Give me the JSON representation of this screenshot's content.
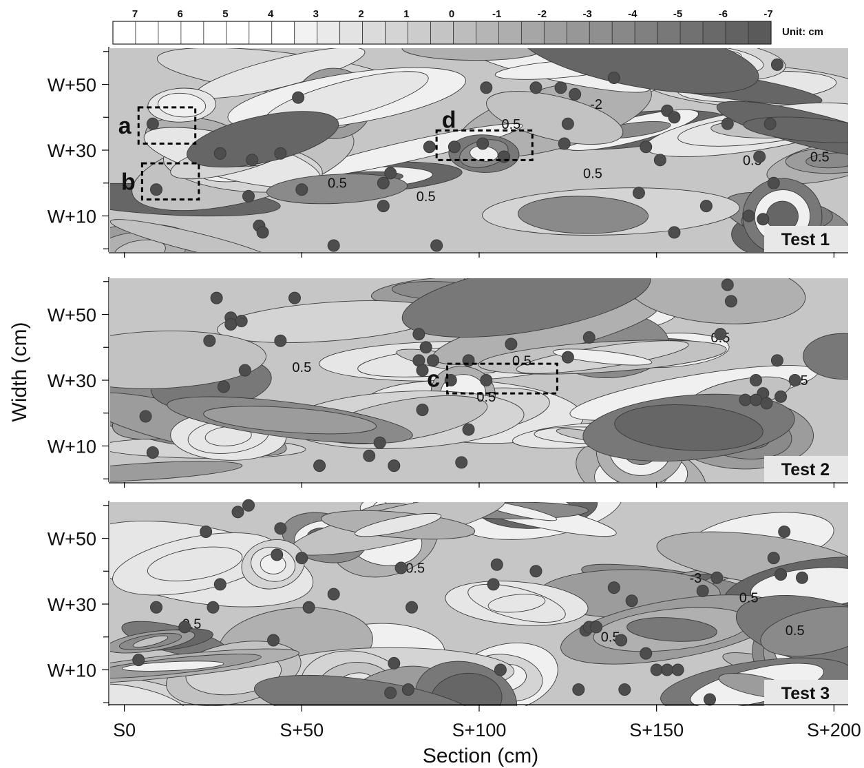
{
  "chart_data": {
    "type": "heatmap",
    "xlabel": "Section (cm)",
    "ylabel": "Width (cm)",
    "x_ticks": [
      "S0",
      "S+50",
      "S+100",
      "S+150",
      "S+200"
    ],
    "x_tick_values": [
      0,
      50,
      100,
      150,
      200
    ],
    "y_ticks": [
      "W+50",
      "W+30",
      "W+10"
    ],
    "y_tick_values": [
      50,
      30,
      10
    ],
    "xlim": [
      -4,
      204
    ],
    "ylim": [
      -1,
      61
    ],
    "colorbar": {
      "labels": [
        "7",
        "6",
        "5",
        "4",
        "3",
        "2",
        "1",
        "0",
        "-1",
        "-2",
        "-3",
        "-4",
        "-5",
        "-6",
        "-7"
      ],
      "values": [
        7,
        6,
        5,
        4,
        3,
        2,
        1,
        0,
        -1,
        -2,
        -3,
        -4,
        -5,
        -6,
        -7
      ],
      "unit": "Unit: cm",
      "color_light": "#ffffff",
      "color_dark": "#5a5a5a"
    },
    "panels": [
      {
        "name": "Test 1",
        "contour_labels": [
          {
            "text": "0.5",
            "x": 60,
            "y": 20
          },
          {
            "text": "0.5",
            "x": 85,
            "y": 16
          },
          {
            "text": "0.5",
            "x": 109,
            "y": 38
          },
          {
            "text": "-2",
            "x": 133,
            "y": 44
          },
          {
            "text": "0.5",
            "x": 132,
            "y": 23
          },
          {
            "text": "0.5",
            "x": 177,
            "y": 27
          },
          {
            "text": "0.5",
            "x": 196,
            "y": 28
          }
        ],
        "boxes": [
          {
            "label": "a",
            "x0": 4,
            "x1": 20,
            "y0": 32,
            "y1": 43
          },
          {
            "label": "b",
            "x0": 5,
            "x1": 21,
            "y0": 15,
            "y1": 26
          },
          {
            "label": "d",
            "x0": 88,
            "x1": 115,
            "y0": 27,
            "y1": 36
          }
        ],
        "points": [
          [
            8,
            38
          ],
          [
            9,
            18
          ],
          [
            49,
            46
          ],
          [
            27,
            29
          ],
          [
            36,
            27
          ],
          [
            44,
            29
          ],
          [
            35,
            16
          ],
          [
            38,
            7
          ],
          [
            39,
            5
          ],
          [
            50,
            18
          ],
          [
            73,
            20
          ],
          [
            75,
            23
          ],
          [
            73,
            13
          ],
          [
            59,
            1
          ],
          [
            88,
            1
          ],
          [
            93,
            31
          ],
          [
            86,
            31
          ],
          [
            101,
            32
          ],
          [
            107,
            28
          ],
          [
            102,
            49
          ],
          [
            116,
            49
          ],
          [
            123,
            49
          ],
          [
            127,
            47
          ],
          [
            125,
            38
          ],
          [
            124,
            32
          ],
          [
            138,
            52
          ],
          [
            153,
            42
          ],
          [
            155,
            40
          ],
          [
            170,
            38
          ],
          [
            182,
            38
          ],
          [
            184,
            56
          ],
          [
            179,
            28
          ],
          [
            147,
            31
          ],
          [
            151,
            27
          ],
          [
            145,
            17
          ],
          [
            164,
            13
          ],
          [
            155,
            5
          ],
          [
            176,
            10
          ],
          [
            180,
            9
          ],
          [
            183,
            20
          ]
        ]
      },
      {
        "name": "Test 2",
        "contour_labels": [
          {
            "text": "0.5",
            "x": 50,
            "y": 34
          },
          {
            "text": "0.5",
            "x": 112,
            "y": 36
          },
          {
            "text": "0.5",
            "x": 102,
            "y": 25
          },
          {
            "text": "0.5",
            "x": 168,
            "y": 43
          },
          {
            "text": "0.5",
            "x": 190,
            "y": 30
          }
        ],
        "boxes": [
          {
            "label": "c",
            "x0": 91,
            "x1": 122,
            "y0": 26,
            "y1": 35
          }
        ],
        "points": [
          [
            26,
            55
          ],
          [
            30,
            49
          ],
          [
            30,
            47
          ],
          [
            33,
            48
          ],
          [
            48,
            55
          ],
          [
            24,
            42
          ],
          [
            34,
            33
          ],
          [
            28,
            28
          ],
          [
            6,
            19
          ],
          [
            8,
            8
          ],
          [
            44,
            42
          ],
          [
            55,
            4
          ],
          [
            83,
            44
          ],
          [
            85,
            40
          ],
          [
            83,
            36
          ],
          [
            84,
            33
          ],
          [
            87,
            36
          ],
          [
            97,
            36
          ],
          [
            84,
            21
          ],
          [
            97,
            15
          ],
          [
            92,
            30
          ],
          [
            95,
            5
          ],
          [
            72,
            11
          ],
          [
            69,
            7
          ],
          [
            76,
            4
          ],
          [
            102,
            30
          ],
          [
            109,
            41
          ],
          [
            125,
            37
          ],
          [
            131,
            43
          ],
          [
            170,
            59
          ],
          [
            171,
            54
          ],
          [
            168,
            44
          ],
          [
            189,
            30
          ],
          [
            178,
            30
          ],
          [
            175,
            24
          ],
          [
            180,
            26
          ],
          [
            178,
            24
          ],
          [
            185,
            25
          ],
          [
            181,
            23
          ],
          [
            184,
            36
          ]
        ]
      },
      {
        "name": "Test 3",
        "contour_labels": [
          {
            "text": "0.5",
            "x": 82,
            "y": 41
          },
          {
            "text": "0.5",
            "x": 19,
            "y": 24
          },
          {
            "text": "-3",
            "x": 161,
            "y": 38
          },
          {
            "text": "0.5",
            "x": 176,
            "y": 32
          },
          {
            "text": "0.5",
            "x": 137,
            "y": 20
          },
          {
            "text": "0.5",
            "x": 189,
            "y": 22
          }
        ],
        "boxes": [],
        "points": [
          [
            35,
            60
          ],
          [
            32,
            58
          ],
          [
            23,
            52
          ],
          [
            44,
            53
          ],
          [
            43,
            45
          ],
          [
            50,
            44
          ],
          [
            27,
            36
          ],
          [
            25,
            29
          ],
          [
            9,
            29
          ],
          [
            17,
            23
          ],
          [
            52,
            29
          ],
          [
            59,
            33
          ],
          [
            78,
            41
          ],
          [
            81,
            29
          ],
          [
            42,
            19
          ],
          [
            4,
            13
          ],
          [
            76,
            12
          ],
          [
            80,
            4
          ],
          [
            75,
            3
          ],
          [
            105,
            42
          ],
          [
            104,
            36
          ],
          [
            116,
            40
          ],
          [
            138,
            35
          ],
          [
            143,
            31
          ],
          [
            130,
            22
          ],
          [
            131,
            23
          ],
          [
            133,
            23
          ],
          [
            140,
            19
          ],
          [
            147,
            15
          ],
          [
            150,
            10
          ],
          [
            153,
            10
          ],
          [
            156,
            10
          ],
          [
            141,
            4
          ],
          [
            128,
            4
          ],
          [
            106,
            10
          ],
          [
            165,
            1
          ],
          [
            183,
            44
          ],
          [
            185,
            39
          ],
          [
            186,
            52
          ],
          [
            191,
            38
          ],
          [
            167,
            38
          ],
          [
            163,
            34
          ]
        ]
      }
    ]
  }
}
